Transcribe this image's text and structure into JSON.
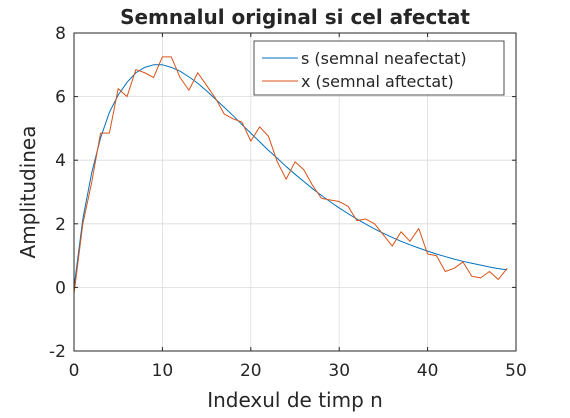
{
  "chart_data": {
    "type": "line",
    "title": "Semnalul original si cel afectat",
    "xlabel": "Indexul de timp n",
    "ylabel": "Amplitudinea",
    "xlim": [
      0,
      50
    ],
    "ylim": [
      -2,
      8
    ],
    "x_ticks": [
      "0",
      "10",
      "20",
      "30",
      "40",
      "50"
    ],
    "y_ticks": [
      "-2",
      "0",
      "2",
      "4",
      "6",
      "8"
    ],
    "x_tick_values": [
      0,
      10,
      20,
      30,
      40,
      50
    ],
    "y_tick_values": [
      -2,
      0,
      2,
      4,
      6,
      8
    ],
    "grid": true,
    "legend_position": "top-right",
    "x": [
      0,
      1,
      2,
      3,
      4,
      5,
      6,
      7,
      8,
      9,
      10,
      11,
      12,
      13,
      14,
      15,
      16,
      17,
      18,
      19,
      20,
      21,
      22,
      23,
      24,
      25,
      26,
      27,
      28,
      29,
      30,
      31,
      32,
      33,
      34,
      35,
      36,
      37,
      38,
      39,
      40,
      41,
      42,
      43,
      44,
      45,
      46,
      47,
      48,
      49
    ],
    "series": [
      {
        "name": "s (semnal neafectat)",
        "color": "#0072bd",
        "values": [
          0.0,
          2.15,
          3.6,
          4.7,
          5.5,
          6.05,
          6.45,
          6.75,
          6.92,
          7.0,
          7.0,
          6.92,
          6.8,
          6.62,
          6.42,
          6.18,
          5.92,
          5.66,
          5.4,
          5.12,
          4.85,
          4.58,
          4.31,
          4.06,
          3.8,
          3.56,
          3.33,
          3.1,
          2.89,
          2.69,
          2.5,
          2.32,
          2.15,
          1.99,
          1.84,
          1.7,
          1.57,
          1.45,
          1.34,
          1.24,
          1.14,
          1.05,
          0.97,
          0.89,
          0.82,
          0.76,
          0.7,
          0.64,
          0.59,
          0.55
        ]
      },
      {
        "name": "x (semnal aftectat)",
        "color": "#d95319",
        "values": [
          -0.2,
          2.0,
          3.3,
          4.85,
          4.85,
          6.25,
          6.0,
          6.85,
          6.75,
          6.6,
          7.25,
          7.25,
          6.6,
          6.2,
          6.75,
          6.35,
          5.95,
          5.45,
          5.3,
          5.2,
          4.6,
          5.05,
          4.75,
          3.95,
          3.4,
          3.95,
          3.7,
          3.2,
          2.8,
          2.75,
          2.7,
          2.55,
          2.1,
          2.15,
          2.0,
          1.65,
          1.3,
          1.75,
          1.45,
          1.85,
          1.05,
          1.0,
          0.5,
          0.6,
          0.8,
          0.35,
          0.3,
          0.5,
          0.25,
          0.6
        ]
      }
    ]
  }
}
